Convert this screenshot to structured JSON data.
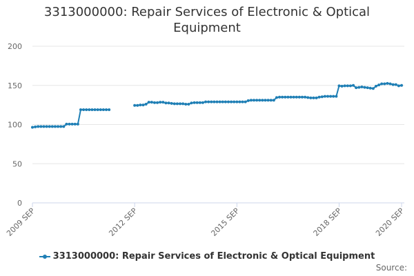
{
  "chart_data": {
    "type": "line",
    "title": "3313000000: Repair Services of Electronic & Optical Equipment",
    "xlabel": "",
    "ylabel": "",
    "ylim": [
      0,
      200
    ],
    "yticks": [
      0,
      50,
      100,
      150,
      200
    ],
    "xtick_labels": [
      "2009 SEP",
      "2012 SEP",
      "2015 SEP",
      "2018 SEP",
      "2020 SEP"
    ],
    "grid": true,
    "legend_position": "bottom",
    "colors": {
      "series": "#1f7fb5",
      "grid": "#e6e6e6",
      "axis": "#ccd6eb",
      "text": "#666666"
    },
    "series": [
      {
        "name": "3313000000: Repair Services of Electronic & Optical Equipment",
        "points": [
          [
            "2009-09",
            96.5
          ],
          [
            "2009-10",
            97.0
          ],
          [
            "2009-11",
            97.5
          ],
          [
            "2009-12",
            97.5
          ],
          [
            "2010-01",
            97.5
          ],
          [
            "2010-02",
            97.5
          ],
          [
            "2010-03",
            97.5
          ],
          [
            "2010-04",
            97.5
          ],
          [
            "2010-05",
            97.5
          ],
          [
            "2010-06",
            97.5
          ],
          [
            "2010-07",
            97.5
          ],
          [
            "2010-08",
            97.5
          ],
          [
            "2010-09",
            100.5
          ],
          [
            "2010-10",
            100.5
          ],
          [
            "2010-11",
            100.5
          ],
          [
            "2010-12",
            100.5
          ],
          [
            "2011-01",
            100.5
          ],
          [
            "2011-02",
            119.0
          ],
          [
            "2011-03",
            119.0
          ],
          [
            "2011-04",
            119.0
          ],
          [
            "2011-05",
            119.0
          ],
          [
            "2011-06",
            119.0
          ],
          [
            "2011-07",
            119.0
          ],
          [
            "2011-08",
            119.0
          ],
          [
            "2011-09",
            119.0
          ],
          [
            "2011-10",
            119.0
          ],
          [
            "2011-11",
            119.0
          ],
          [
            "2011-12",
            119.0
          ],
          [
            "2012-01",
            null
          ],
          [
            "2012-02",
            null
          ],
          [
            "2012-03",
            null
          ],
          [
            "2012-04",
            null
          ],
          [
            "2012-05",
            null
          ],
          [
            "2012-06",
            null
          ],
          [
            "2012-07",
            null
          ],
          [
            "2012-08",
            null
          ],
          [
            "2012-09",
            124.5
          ],
          [
            "2012-10",
            124.5
          ],
          [
            "2012-11",
            125.0
          ],
          [
            "2012-12",
            125.0
          ],
          [
            "2013-01",
            126.0
          ],
          [
            "2013-02",
            128.5
          ],
          [
            "2013-03",
            128.5
          ],
          [
            "2013-04",
            128.0
          ],
          [
            "2013-05",
            128.0
          ],
          [
            "2013-06",
            128.5
          ],
          [
            "2013-07",
            128.5
          ],
          [
            "2013-08",
            127.5
          ],
          [
            "2013-09",
            127.5
          ],
          [
            "2013-10",
            127.0
          ],
          [
            "2013-11",
            126.5
          ],
          [
            "2013-12",
            126.5
          ],
          [
            "2014-01",
            126.5
          ],
          [
            "2014-02",
            126.5
          ],
          [
            "2014-03",
            126.0
          ],
          [
            "2014-04",
            126.0
          ],
          [
            "2014-05",
            127.5
          ],
          [
            "2014-06",
            128.0
          ],
          [
            "2014-07",
            128.0
          ],
          [
            "2014-08",
            128.0
          ],
          [
            "2014-09",
            128.0
          ],
          [
            "2014-10",
            129.0
          ],
          [
            "2014-11",
            129.0
          ],
          [
            "2014-12",
            129.0
          ],
          [
            "2015-01",
            129.0
          ],
          [
            "2015-02",
            129.0
          ],
          [
            "2015-03",
            129.0
          ],
          [
            "2015-04",
            129.0
          ],
          [
            "2015-05",
            129.0
          ],
          [
            "2015-06",
            129.0
          ],
          [
            "2015-07",
            129.0
          ],
          [
            "2015-08",
            129.0
          ],
          [
            "2015-09",
            129.0
          ],
          [
            "2015-10",
            129.0
          ],
          [
            "2015-11",
            129.0
          ],
          [
            "2015-12",
            129.0
          ],
          [
            "2016-01",
            130.5
          ],
          [
            "2016-02",
            131.0
          ],
          [
            "2016-03",
            131.0
          ],
          [
            "2016-04",
            131.0
          ],
          [
            "2016-05",
            131.0
          ],
          [
            "2016-06",
            131.0
          ],
          [
            "2016-07",
            131.0
          ],
          [
            "2016-08",
            131.0
          ],
          [
            "2016-09",
            131.0
          ],
          [
            "2016-10",
            131.0
          ],
          [
            "2016-11",
            134.5
          ],
          [
            "2016-12",
            135.0
          ],
          [
            "2017-01",
            135.0
          ],
          [
            "2017-02",
            135.0
          ],
          [
            "2017-03",
            135.0
          ],
          [
            "2017-04",
            135.0
          ],
          [
            "2017-05",
            135.0
          ],
          [
            "2017-06",
            135.0
          ],
          [
            "2017-07",
            135.0
          ],
          [
            "2017-08",
            135.0
          ],
          [
            "2017-09",
            135.0
          ],
          [
            "2017-10",
            134.5
          ],
          [
            "2017-11",
            134.0
          ],
          [
            "2017-12",
            134.0
          ],
          [
            "2018-01",
            134.0
          ],
          [
            "2018-02",
            135.0
          ],
          [
            "2018-03",
            135.5
          ],
          [
            "2018-04",
            136.0
          ],
          [
            "2018-05",
            136.0
          ],
          [
            "2018-06",
            136.0
          ],
          [
            "2018-07",
            136.0
          ],
          [
            "2018-08",
            136.0
          ],
          [
            "2018-09",
            149.5
          ],
          [
            "2018-10",
            149.0
          ],
          [
            "2018-11",
            149.5
          ],
          [
            "2018-12",
            149.5
          ],
          [
            "2019-01",
            149.5
          ],
          [
            "2019-02",
            150.0
          ],
          [
            "2019-03",
            147.0
          ],
          [
            "2019-04",
            147.5
          ],
          [
            "2019-05",
            148.0
          ],
          [
            "2019-06",
            147.5
          ],
          [
            "2019-07",
            147.0
          ],
          [
            "2019-08",
            146.5
          ],
          [
            "2019-09",
            146.0
          ],
          [
            "2019-10",
            149.0
          ],
          [
            "2019-11",
            150.5
          ],
          [
            "2019-12",
            152.0
          ],
          [
            "2020-01",
            152.0
          ],
          [
            "2020-02",
            152.5
          ],
          [
            "2020-03",
            152.0
          ],
          [
            "2020-04",
            151.0
          ],
          [
            "2020-05",
            151.0
          ],
          [
            "2020-06",
            149.5
          ],
          [
            "2020-07",
            150.0
          ]
        ]
      }
    ]
  },
  "legend": {
    "label": "3313000000: Repair Services of Electronic & Optical Equipment"
  },
  "footer": {
    "source_label": "Source:"
  }
}
